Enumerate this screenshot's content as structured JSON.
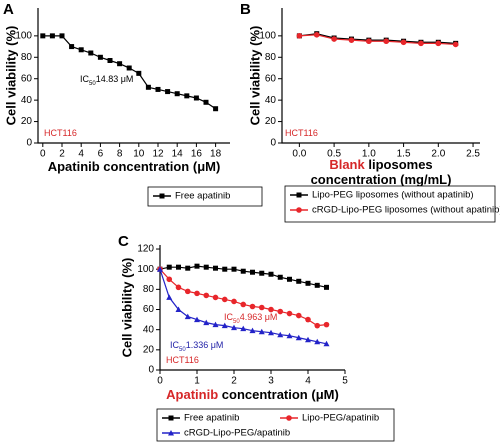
{
  "chart_data": [
    {
      "type": "line",
      "panel": "A",
      "ylabel": "Cell viability (%)",
      "xlabel": {
        "lines": [
          "Apatinib concentration (μM)"
        ]
      },
      "xlim": [
        -0.5,
        19.5
      ],
      "ylim": [
        0,
        126
      ],
      "xticks": [
        0,
        2,
        4,
        6,
        8,
        10,
        12,
        14,
        16,
        18
      ],
      "yticks": [
        0,
        20,
        40,
        60,
        80,
        100
      ],
      "annotations": [
        {
          "prefix": "IC",
          "sub": "50",
          "text": "14.83 μM",
          "color": "#000000"
        },
        {
          "text": "HCT116",
          "color": "#d62728"
        }
      ],
      "series": [
        {
          "name": "Free apatinib",
          "color": "#000000",
          "marker": "square",
          "x": [
            0,
            1,
            2,
            3,
            4,
            5,
            6,
            7,
            8,
            9,
            10,
            11,
            12,
            13,
            14,
            15,
            16,
            17,
            18
          ],
          "values": [
            100,
            100,
            100,
            90,
            87,
            84,
            80,
            77,
            74,
            70,
            65,
            52,
            50,
            48,
            46,
            44,
            42,
            38,
            32
          ]
        }
      ]
    },
    {
      "type": "line",
      "panel": "B",
      "ylabel": "Cell viability (%)",
      "xlabel": {
        "highlight": "Blank",
        "lines": [
          "liposomes",
          "concentration (mg/mL)"
        ]
      },
      "xlim": [
        -0.25,
        2.6
      ],
      "ylim": [
        0,
        126
      ],
      "xticks": [
        {
          "value": 0,
          "label": "0.0"
        },
        0.5,
        {
          "value": 1,
          "label": "1.0"
        },
        1.5,
        {
          "value": 2,
          "label": "2.0"
        },
        2.5
      ],
      "yticks": [
        0,
        20,
        40,
        60,
        80,
        100
      ],
      "annotations": [
        {
          "text": "HCT116",
          "color": "#d62728"
        }
      ],
      "series": [
        {
          "name": "Lipo-PEG liposomes (without apatinib)",
          "color": "#000000",
          "marker": "square",
          "x": [
            0,
            0.25,
            0.5,
            0.75,
            1,
            1.25,
            1.5,
            1.75,
            2,
            2.25
          ],
          "values": [
            100,
            102,
            98,
            97,
            96,
            96,
            95,
            94,
            94,
            93
          ]
        },
        {
          "name": "cRGD-Lipo-PEG liposomes (without apatinib)",
          "color": "#e8262b",
          "marker": "circle",
          "x": [
            0,
            0.25,
            0.5,
            0.75,
            1,
            1.25,
            1.5,
            1.75,
            2,
            2.25
          ],
          "values": [
            100,
            101,
            97,
            96,
            95,
            95,
            94,
            93,
            93,
            92
          ]
        }
      ]
    },
    {
      "type": "line",
      "panel": "C",
      "ylabel": "Cell viability (%)",
      "xlabel": {
        "highlight": "Apatinib",
        "lines": [
          "concentration (μM)"
        ]
      },
      "xlim": [
        0,
        5
      ],
      "ylim": [
        0,
        124
      ],
      "xticks": [
        0,
        1,
        2,
        3,
        4,
        5
      ],
      "yticks": [
        0,
        20,
        40,
        60,
        80,
        100,
        120
      ],
      "annotations": [
        {
          "prefix": "IC",
          "sub": "50",
          "text": "4.963 μM",
          "color": "#d62728"
        },
        {
          "prefix": "IC",
          "sub": "50",
          "text": "1.336 μM",
          "color": "#2323a8"
        },
        {
          "text": "HCT116",
          "color": "#d62728"
        }
      ],
      "series": [
        {
          "name": "Free apatinib",
          "color": "#000000",
          "marker": "square",
          "x": [
            0,
            0.25,
            0.5,
            0.75,
            1,
            1.25,
            1.5,
            1.75,
            2,
            2.25,
            2.5,
            2.75,
            3,
            3.25,
            3.5,
            3.75,
            4,
            4.25,
            4.5
          ],
          "values": [
            100,
            102,
            102,
            101,
            103,
            102,
            101,
            100,
            100,
            98,
            97,
            96,
            95,
            92,
            90,
            88,
            86,
            84,
            82
          ]
        },
        {
          "name": "Lipo-PEG/apatinib",
          "color": "#e8262b",
          "marker": "circle",
          "x": [
            0,
            0.25,
            0.5,
            0.75,
            1,
            1.25,
            1.5,
            1.75,
            2,
            2.25,
            2.5,
            2.75,
            3,
            3.25,
            3.5,
            3.75,
            4,
            4.25,
            4.5
          ],
          "values": [
            100,
            90,
            82,
            78,
            76,
            74,
            72,
            70,
            68,
            65,
            63,
            62,
            60,
            58,
            56,
            54,
            50,
            44,
            45
          ]
        },
        {
          "name": "cRGD-Lipo-PEG/apatinib",
          "color": "#2323c8",
          "marker": "triangle",
          "x": [
            0,
            0.25,
            0.5,
            0.75,
            1,
            1.25,
            1.5,
            1.75,
            2,
            2.25,
            2.5,
            2.75,
            3,
            3.25,
            3.5,
            3.75,
            4,
            4.25,
            4.5
          ],
          "values": [
            100,
            72,
            60,
            53,
            50,
            47,
            45,
            44,
            42,
            41,
            39,
            38,
            37,
            35,
            34,
            32,
            30,
            28,
            26
          ]
        }
      ]
    }
  ]
}
